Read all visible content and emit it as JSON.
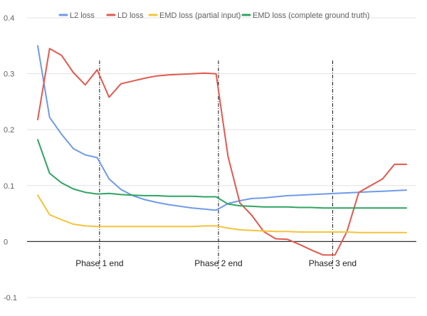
{
  "chart_data": {
    "type": "line",
    "title": "",
    "xlabel": "",
    "ylabel": "",
    "ylim": [
      -0.1,
      0.4
    ],
    "yticks": [
      {
        "value": 0.4,
        "label": "0.4"
      },
      {
        "value": 0.3,
        "label": "0.3"
      },
      {
        "value": 0.2,
        "label": "0.2"
      },
      {
        "value": 0.1,
        "label": "0.1"
      },
      {
        "value": 0,
        "label": "0"
      },
      {
        "value": -0.1,
        "label": "-0.1"
      }
    ],
    "grid": true,
    "legend_position": "top",
    "x": [
      1,
      2,
      3,
      4,
      5,
      6,
      7,
      8,
      9,
      10,
      11,
      12,
      13,
      14,
      15,
      16,
      17,
      18,
      19,
      20,
      21,
      22,
      23,
      24,
      25,
      26,
      27,
      28,
      29,
      30,
      31,
      32
    ],
    "series": [
      {
        "name": "L2 loss",
        "color": "#6f9be8",
        "values": [
          0.35,
          0.222,
          0.192,
          0.166,
          0.155,
          0.15,
          0.112,
          0.093,
          0.082,
          0.075,
          0.07,
          0.066,
          0.063,
          0.06,
          0.058,
          0.056,
          0.068,
          0.073,
          0.077,
          0.078,
          0.08,
          0.082,
          0.083,
          0.084,
          0.085,
          0.086,
          0.087,
          0.088,
          0.089,
          0.09,
          0.091,
          0.092
        ]
      },
      {
        "name": "LD loss",
        "color": "#e05a4f",
        "values": [
          0.218,
          0.345,
          0.333,
          0.302,
          0.28,
          0.307,
          0.258,
          0.282,
          0.287,
          0.292,
          0.296,
          0.298,
          0.299,
          0.3,
          0.301,
          0.3,
          0.152,
          0.069,
          0.047,
          0.018,
          0.005,
          0.004,
          -0.005,
          -0.015,
          -0.024,
          -0.024,
          0.018,
          0.088,
          0.1,
          0.112,
          0.138,
          0.138
        ]
      },
      {
        "name": "EMD loss (partial input)",
        "color": "#f4c43a",
        "values": [
          0.083,
          0.048,
          0.039,
          0.031,
          0.028,
          0.027,
          0.027,
          0.027,
          0.027,
          0.027,
          0.027,
          0.027,
          0.027,
          0.027,
          0.028,
          0.028,
          0.024,
          0.021,
          0.02,
          0.019,
          0.018,
          0.018,
          0.017,
          0.017,
          0.017,
          0.017,
          0.017,
          0.016,
          0.016,
          0.016,
          0.016,
          0.016
        ]
      },
      {
        "name": "EMD loss (complete ground truth)",
        "color": "#2fa463",
        "values": [
          0.182,
          0.122,
          0.105,
          0.094,
          0.088,
          0.085,
          0.086,
          0.084,
          0.083,
          0.082,
          0.082,
          0.081,
          0.081,
          0.081,
          0.08,
          0.08,
          0.067,
          0.064,
          0.063,
          0.062,
          0.062,
          0.062,
          0.061,
          0.061,
          0.06,
          0.06,
          0.06,
          0.06,
          0.06,
          0.06,
          0.06,
          0.06
        ]
      }
    ],
    "annotations": [
      {
        "x": 6.2,
        "text": "Phase 1 end"
      },
      {
        "x": 16.2,
        "text": "Phase 2 end"
      },
      {
        "x": 25.8,
        "text": "Phase 3 end"
      }
    ]
  }
}
